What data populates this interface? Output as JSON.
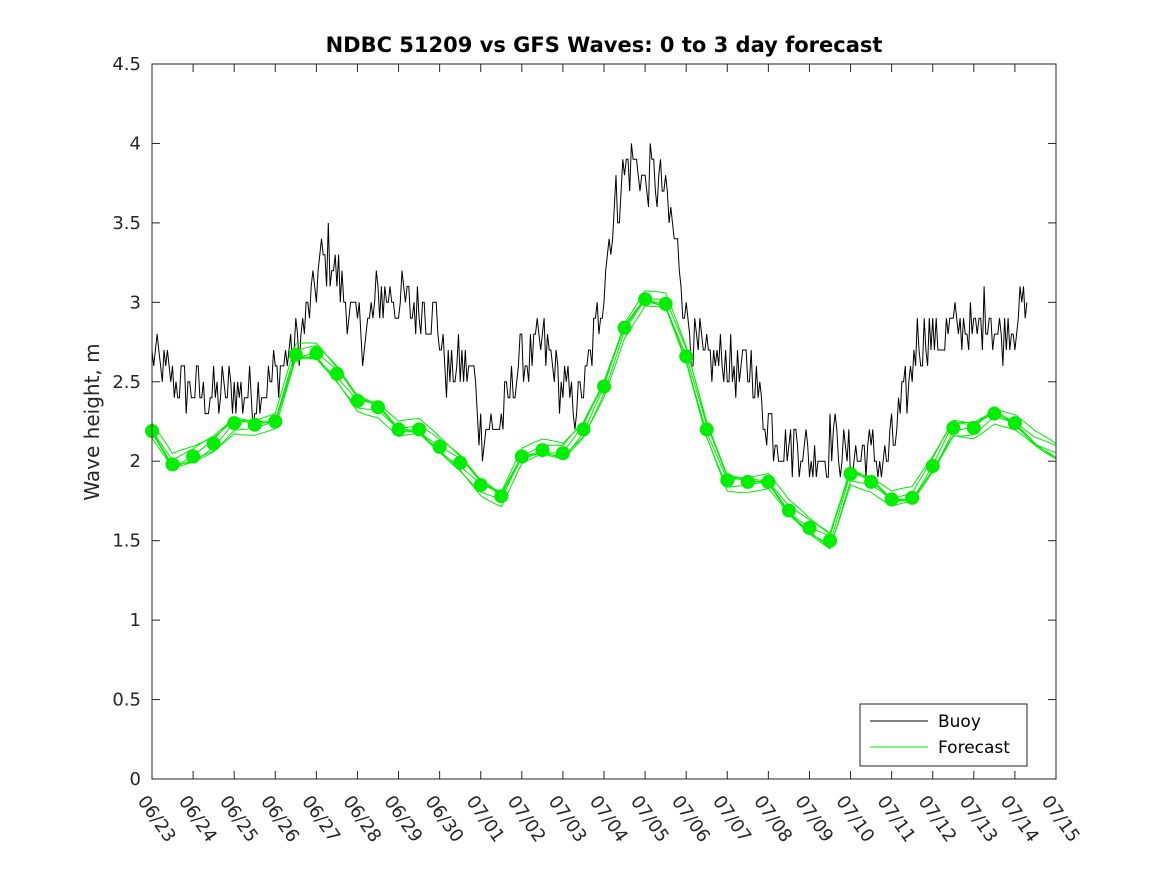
{
  "chart_data": {
    "type": "line",
    "title": "NDBC 51209 vs GFS Waves: 0 to 3 day forecast",
    "xlabel": "",
    "ylabel": "Wave height, m",
    "x_tick_labels": [
      "06/23",
      "06/24",
      "06/25",
      "06/26",
      "06/27",
      "06/28",
      "06/29",
      "06/30",
      "07/01",
      "07/02",
      "07/03",
      "07/04",
      "07/05",
      "07/06",
      "07/07",
      "07/08",
      "07/09",
      "07/10",
      "07/11",
      "07/12",
      "07/13",
      "07/14",
      "07/15"
    ],
    "y_ticks": [
      0,
      0.5,
      1,
      1.5,
      2,
      2.5,
      3,
      3.5,
      4,
      4.5
    ],
    "ylim": [
      0,
      4.5
    ],
    "xlim_days": [
      0,
      22
    ],
    "grid": false,
    "legend_position": "bottom-right",
    "series": [
      {
        "name": "Buoy",
        "color": "#000000",
        "style": "noisy-line",
        "x_days": [
          0,
          0.5,
          1,
          1.5,
          2,
          2.5,
          3,
          3.3,
          3.6,
          3.9,
          4.1,
          4.3,
          4.6,
          4.9,
          5.2,
          5.5,
          5.8,
          6.0,
          6.3,
          6.6,
          6.9,
          7.2,
          7.5,
          7.8,
          8.0,
          8.3,
          8.6,
          8.9,
          9.2,
          9.5,
          9.8,
          10.0,
          10.3,
          10.6,
          10.9,
          11.2,
          11.5,
          11.8,
          12.0,
          12.2,
          12.5,
          12.8,
          13.0,
          13.2,
          13.5,
          13.8,
          14.0,
          14.3,
          14.6,
          14.9,
          15.2,
          15.5,
          15.8,
          16.0,
          16.3,
          16.6,
          16.9,
          17.2,
          17.5,
          17.8,
          18.0,
          18.3,
          18.6,
          18.9,
          19.2,
          19.5,
          19.8,
          20.0,
          20.3,
          20.6,
          20.9,
          21.1,
          21.3
        ],
        "values": [
          2.65,
          2.5,
          2.45,
          2.4,
          2.45,
          2.4,
          2.55,
          2.65,
          2.75,
          3.0,
          3.25,
          3.3,
          3.1,
          2.85,
          2.8,
          3.05,
          3.05,
          3.0,
          2.95,
          3.0,
          2.9,
          2.55,
          2.6,
          2.55,
          2.2,
          2.2,
          2.3,
          2.6,
          2.65,
          2.75,
          2.6,
          2.45,
          2.35,
          2.55,
          2.95,
          3.5,
          3.85,
          3.9,
          3.75,
          3.8,
          3.65,
          3.3,
          2.9,
          2.75,
          2.6,
          2.65,
          2.6,
          2.55,
          2.6,
          2.3,
          2.15,
          2.1,
          2.1,
          2.0,
          2.05,
          2.15,
          2.0,
          2.05,
          2.05,
          2.0,
          2.1,
          2.35,
          2.75,
          2.8,
          2.75,
          2.8,
          2.85,
          2.8,
          2.95,
          2.8,
          2.85,
          2.95,
          2.9
        ]
      },
      {
        "name": "Forecast",
        "color": "#00ee00",
        "style": "ensemble-with-markers",
        "x_days": [
          0,
          0.5,
          1,
          1.5,
          2,
          2.5,
          3,
          3.5,
          4,
          4.5,
          5,
          5.5,
          6,
          6.5,
          7,
          7.5,
          8,
          8.5,
          9,
          9.5,
          10,
          10.5,
          11,
          11.5,
          12,
          12.5,
          13,
          13.5,
          14,
          14.5,
          15,
          15.5,
          16,
          16.5,
          17,
          17.5,
          18,
          18.5,
          19,
          19.5,
          20,
          20.5,
          21,
          21.5,
          22
        ],
        "values": [
          2.19,
          1.98,
          2.03,
          2.11,
          2.24,
          2.23,
          2.25,
          2.67,
          2.68,
          2.55,
          2.38,
          2.34,
          2.2,
          2.2,
          2.09,
          1.99,
          1.85,
          1.78,
          2.03,
          2.07,
          2.05,
          2.2,
          2.47,
          2.84,
          3.02,
          2.99,
          2.66,
          2.2,
          1.88,
          1.87,
          1.87,
          1.69,
          1.58,
          1.5,
          1.92,
          1.87,
          1.76,
          1.77,
          1.97,
          2.21,
          2.21,
          2.3,
          2.24,
          2.12,
          2.05
        ],
        "marker_x_days": [
          0,
          0.5,
          1,
          1.5,
          2,
          2.5,
          3,
          3.5,
          4,
          4.5,
          5,
          5.5,
          6,
          6.5,
          7,
          7.5,
          8,
          8.5,
          9,
          9.5,
          10,
          10.5,
          11,
          11.5,
          12,
          12.5,
          13,
          13.5,
          14,
          14.5,
          15,
          15.5,
          16,
          16.5,
          17,
          17.5,
          18,
          18.5,
          19,
          19.5,
          20,
          20.5,
          21
        ],
        "marker_values": [
          2.19,
          1.98,
          2.03,
          2.11,
          2.24,
          2.23,
          2.25,
          2.67,
          2.68,
          2.55,
          2.38,
          2.34,
          2.2,
          2.2,
          2.09,
          1.99,
          1.85,
          1.78,
          2.03,
          2.07,
          2.05,
          2.2,
          2.47,
          2.84,
          3.02,
          2.99,
          2.66,
          2.2,
          1.88,
          1.87,
          1.87,
          1.69,
          1.58,
          1.5,
          1.92,
          1.87,
          1.76,
          1.77,
          1.97,
          2.21,
          2.21,
          2.3,
          2.24
        ]
      }
    ]
  }
}
